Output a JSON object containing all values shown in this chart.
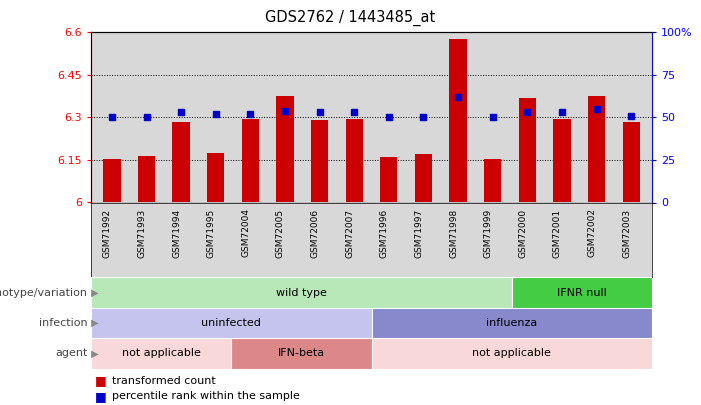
{
  "title": "GDS2762 / 1443485_at",
  "samples": [
    "GSM71992",
    "GSM71993",
    "GSM71994",
    "GSM71995",
    "GSM72004",
    "GSM72005",
    "GSM72006",
    "GSM72007",
    "GSM71996",
    "GSM71997",
    "GSM71998",
    "GSM71999",
    "GSM72000",
    "GSM72001",
    "GSM72002",
    "GSM72003"
  ],
  "bar_values": [
    6.155,
    6.165,
    6.285,
    6.175,
    6.295,
    6.375,
    6.29,
    6.295,
    6.16,
    6.17,
    6.575,
    6.155,
    6.37,
    6.295,
    6.375,
    6.285
  ],
  "percentile_values": [
    50,
    50,
    53,
    52,
    52,
    54,
    53,
    53,
    50,
    50,
    62,
    50,
    53,
    53,
    55,
    51
  ],
  "bar_base": 6.0,
  "ylim_left": [
    6.0,
    6.6
  ],
  "ylim_right": [
    0,
    100
  ],
  "yticks_left": [
    6.0,
    6.15,
    6.3,
    6.45,
    6.6
  ],
  "yticks_right": [
    0,
    25,
    50,
    75,
    100
  ],
  "ytick_labels_left": [
    "6",
    "6.15",
    "6.3",
    "6.45",
    "6.6"
  ],
  "ytick_labels_right": [
    "0",
    "25",
    "50",
    "75",
    "100%"
  ],
  "bar_color": "#cc0000",
  "percentile_color": "#0000cc",
  "background_color": "#ffffff",
  "plot_bg_color": "#d8d8d8",
  "genotype_row": {
    "label": "genotype/variation",
    "segments": [
      {
        "text": "wild type",
        "start": 0,
        "end": 12,
        "color": "#b8e8b8"
      },
      {
        "text": "IFNR null",
        "start": 12,
        "end": 16,
        "color": "#44cc44"
      }
    ]
  },
  "infection_row": {
    "label": "infection",
    "segments": [
      {
        "text": "uninfected",
        "start": 0,
        "end": 8,
        "color": "#c4c4ee"
      },
      {
        "text": "influenza",
        "start": 8,
        "end": 16,
        "color": "#8888cc"
      }
    ]
  },
  "agent_row": {
    "label": "agent",
    "segments": [
      {
        "text": "not applicable",
        "start": 0,
        "end": 4,
        "color": "#f8d8d8"
      },
      {
        "text": "IFN-beta",
        "start": 4,
        "end": 8,
        "color": "#dd8888"
      },
      {
        "text": "not applicable",
        "start": 8,
        "end": 16,
        "color": "#f8d8d8"
      }
    ]
  },
  "legend_items": [
    {
      "color": "#cc0000",
      "label": "transformed count"
    },
    {
      "color": "#0000cc",
      "label": "percentile rank within the sample"
    }
  ]
}
